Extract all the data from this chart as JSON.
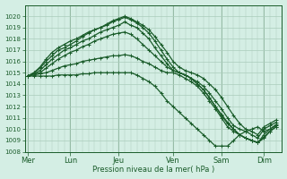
{
  "bg_color": "#d4eee4",
  "grid_color": "#aaccbb",
  "line_color": "#1a5c2a",
  "xlabel": "Pression niveau de la mer( hPa )",
  "ylim": [
    1008,
    1021
  ],
  "yticks": [
    1008,
    1009,
    1010,
    1011,
    1012,
    1013,
    1014,
    1015,
    1016,
    1017,
    1018,
    1019,
    1020
  ],
  "xtick_labels": [
    "Mer",
    "Lun",
    "Jeu",
    "Ven",
    "Sam",
    "Dim"
  ],
  "xtick_pos": [
    0,
    14,
    30,
    48,
    64,
    78
  ],
  "xlim": [
    -1,
    84
  ],
  "series": [
    {
      "x": [
        0,
        2,
        4,
        6,
        8,
        10,
        12,
        14,
        16,
        18,
        20,
        22,
        24,
        26,
        28,
        30,
        32,
        34,
        36,
        38,
        40,
        42,
        44,
        46,
        48,
        50,
        52,
        54,
        56,
        58,
        60,
        62,
        64,
        66,
        68,
        70,
        72,
        74,
        76,
        78,
        80,
        82
      ],
      "y": [
        1014.7,
        1015.0,
        1015.5,
        1016.2,
        1016.8,
        1017.2,
        1017.5,
        1017.8,
        1018.0,
        1018.3,
        1018.6,
        1018.8,
        1019.0,
        1019.3,
        1019.6,
        1019.8,
        1020.0,
        1019.8,
        1019.5,
        1019.2,
        1018.8,
        1018.2,
        1017.5,
        1016.8,
        1016.0,
        1015.5,
        1015.2,
        1015.0,
        1014.8,
        1014.5,
        1014.0,
        1013.5,
        1012.8,
        1012.0,
        1011.2,
        1010.5,
        1010.0,
        1009.8,
        1009.5,
        1010.2,
        1010.5,
        1010.8
      ]
    },
    {
      "x": [
        0,
        2,
        4,
        6,
        8,
        10,
        12,
        14,
        16,
        18,
        20,
        22,
        24,
        26,
        28,
        30,
        32,
        34,
        36,
        38,
        40,
        42,
        44,
        46,
        48,
        50,
        52,
        54,
        56,
        58,
        60,
        62,
        64,
        66,
        68,
        70,
        72,
        74,
        76,
        78,
        80,
        82
      ],
      "y": [
        1014.7,
        1015.0,
        1015.4,
        1016.0,
        1016.5,
        1017.0,
        1017.2,
        1017.5,
        1017.8,
        1018.2,
        1018.5,
        1018.8,
        1019.0,
        1019.2,
        1019.5,
        1019.7,
        1019.9,
        1019.7,
        1019.4,
        1019.0,
        1018.5,
        1017.8,
        1017.0,
        1016.2,
        1015.5,
        1015.0,
        1014.8,
        1014.5,
        1014.2,
        1013.8,
        1013.2,
        1012.5,
        1011.8,
        1011.0,
        1010.3,
        1010.0,
        1009.8,
        1009.5,
        1009.2,
        1010.0,
        1010.3,
        1010.6
      ]
    },
    {
      "x": [
        0,
        2,
        4,
        6,
        8,
        10,
        12,
        14,
        16,
        18,
        20,
        22,
        24,
        26,
        28,
        30,
        32,
        34,
        36,
        38,
        40,
        42,
        44,
        46,
        48,
        50,
        52,
        54,
        56,
        58,
        60,
        62,
        64,
        66,
        68,
        70,
        72,
        74,
        76,
        78,
        80,
        82
      ],
      "y": [
        1014.7,
        1014.9,
        1015.2,
        1015.7,
        1016.2,
        1016.6,
        1017.0,
        1017.2,
        1017.5,
        1017.8,
        1018.0,
        1018.3,
        1018.6,
        1018.8,
        1019.0,
        1019.2,
        1019.5,
        1019.2,
        1019.0,
        1018.5,
        1018.0,
        1017.2,
        1016.5,
        1015.8,
        1015.2,
        1015.0,
        1014.8,
        1014.5,
        1014.0,
        1013.5,
        1012.8,
        1012.0,
        1011.2,
        1010.5,
        1010.0,
        1009.5,
        1009.2,
        1009.0,
        1008.8,
        1009.5,
        1010.0,
        1010.4
      ]
    },
    {
      "x": [
        0,
        2,
        4,
        6,
        8,
        10,
        12,
        14,
        16,
        18,
        20,
        22,
        24,
        26,
        28,
        30,
        32,
        34,
        36,
        38,
        40,
        42,
        44,
        46,
        48,
        50,
        52,
        54,
        56,
        58,
        60,
        62,
        64,
        66,
        68,
        70,
        72,
        74,
        76,
        78,
        80,
        82
      ],
      "y": [
        1014.7,
        1014.9,
        1015.0,
        1015.4,
        1015.8,
        1016.2,
        1016.5,
        1016.8,
        1017.0,
        1017.3,
        1017.5,
        1017.8,
        1018.0,
        1018.2,
        1018.4,
        1018.5,
        1018.6,
        1018.4,
        1018.0,
        1017.5,
        1017.0,
        1016.5,
        1016.0,
        1015.5,
        1015.2,
        1015.0,
        1014.8,
        1014.5,
        1014.0,
        1013.5,
        1012.8,
        1012.0,
        1011.3,
        1010.6,
        1010.0,
        1009.5,
        1009.2,
        1009.0,
        1008.8,
        1009.2,
        1009.8,
        1010.2
      ]
    },
    {
      "x": [
        0,
        2,
        4,
        6,
        8,
        10,
        12,
        14,
        16,
        18,
        20,
        22,
        24,
        26,
        28,
        30,
        32,
        34,
        36,
        38,
        40,
        42,
        44,
        46,
        48,
        50,
        52,
        54,
        56,
        58,
        60,
        62,
        64,
        66,
        68,
        70,
        72,
        74,
        76,
        78,
        80,
        82
      ],
      "y": [
        1014.7,
        1014.8,
        1014.9,
        1015.0,
        1015.2,
        1015.4,
        1015.6,
        1015.7,
        1015.8,
        1016.0,
        1016.1,
        1016.2,
        1016.3,
        1016.4,
        1016.5,
        1016.5,
        1016.6,
        1016.5,
        1016.3,
        1016.0,
        1015.8,
        1015.5,
        1015.2,
        1015.0,
        1015.0,
        1014.8,
        1014.5,
        1014.2,
        1013.8,
        1013.2,
        1012.5,
        1011.8,
        1011.0,
        1010.2,
        1009.8,
        1009.5,
        1009.2,
        1009.0,
        1008.8,
        1009.3,
        1009.8,
        1010.2
      ]
    },
    {
      "x": [
        0,
        2,
        4,
        6,
        8,
        10,
        12,
        14,
        16,
        18,
        20,
        22,
        24,
        26,
        28,
        30,
        32,
        34,
        36,
        38,
        40,
        42,
        44,
        46,
        48,
        50,
        52,
        54,
        56,
        58,
        60,
        62,
        64,
        66,
        68,
        70,
        72,
        74,
        76,
        78,
        80,
        82
      ],
      "y": [
        1014.7,
        1014.7,
        1014.7,
        1014.7,
        1014.7,
        1014.8,
        1014.8,
        1014.8,
        1014.8,
        1014.9,
        1014.9,
        1015.0,
        1015.0,
        1015.0,
        1015.0,
        1015.0,
        1015.0,
        1015.0,
        1014.8,
        1014.5,
        1014.2,
        1013.8,
        1013.2,
        1012.5,
        1012.0,
        1011.5,
        1011.0,
        1010.5,
        1010.0,
        1009.5,
        1009.0,
        1008.5,
        1008.5,
        1008.5,
        1009.0,
        1009.5,
        1009.8,
        1010.0,
        1010.2,
        1009.8,
        1010.0,
        1010.3
      ]
    }
  ],
  "marker": "+",
  "marker_size": 3,
  "line_width": 0.9
}
